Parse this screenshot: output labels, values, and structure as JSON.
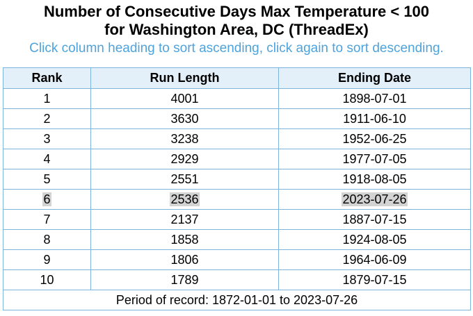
{
  "title_line1": "Number of Consecutive Days Max Temperature < 100",
  "title_line2": "for Washington Area, DC (ThreadEx)",
  "instructions": "Click column heading to sort ascending, click again to sort descending.",
  "table": {
    "headers": [
      "Rank",
      "Run Length",
      "Ending Date"
    ],
    "rows": [
      {
        "rank": "1",
        "run_length": "4001",
        "ending_date": "1898-07-01"
      },
      {
        "rank": "2",
        "run_length": "3630",
        "ending_date": "1911-06-10"
      },
      {
        "rank": "3",
        "run_length": "3238",
        "ending_date": "1952-06-25"
      },
      {
        "rank": "4",
        "run_length": "2929",
        "ending_date": "1977-07-05"
      },
      {
        "rank": "5",
        "run_length": "2551",
        "ending_date": "1918-08-05"
      },
      {
        "rank": "6",
        "run_length": "2536",
        "ending_date": "2023-07-26"
      },
      {
        "rank": "7",
        "run_length": "2137",
        "ending_date": "1887-07-15"
      },
      {
        "rank": "8",
        "run_length": "1858",
        "ending_date": "1924-08-05"
      },
      {
        "rank": "9",
        "run_length": "1806",
        "ending_date": "1964-06-09"
      },
      {
        "rank": "10",
        "run_length": "1789",
        "ending_date": "1879-07-15"
      }
    ],
    "footer": "Period of record: 1872-01-01 to 2023-07-26"
  },
  "colors": {
    "instructions": "#4fa3dc",
    "border": "#7cb4dc",
    "header_bg": "#e3f0fa",
    "highlight": "#d3d3d3"
  }
}
